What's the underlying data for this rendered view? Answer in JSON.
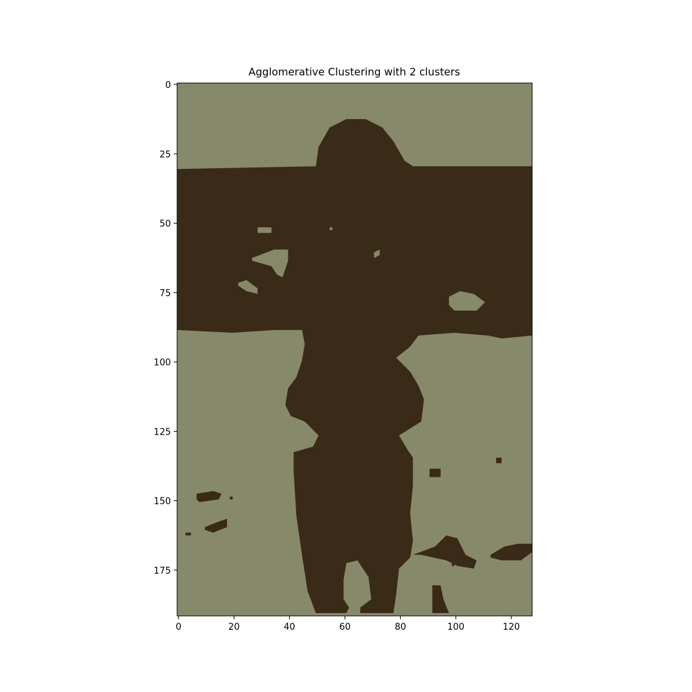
{
  "chart_data": {
    "type": "heatmap",
    "title": "Agglomerative Clustering with 2 clusters",
    "xlabel": "",
    "ylabel": "",
    "xlim": [
      0,
      128
    ],
    "ylim": [
      192,
      0
    ],
    "x_ticks": [
      0,
      20,
      40,
      60,
      80,
      100,
      120
    ],
    "y_ticks": [
      0,
      25,
      50,
      75,
      100,
      125,
      150,
      175
    ],
    "grid": false,
    "legend": "none",
    "colors": {
      "light": "#878a6a",
      "dark": "#3a2a18"
    },
    "clusters": [
      "light",
      "dark"
    ],
    "dark_regions_note_free": true,
    "dark_polygons": [
      [
        [
          0,
          31
        ],
        [
          50,
          30
        ],
        [
          51,
          23
        ],
        [
          55,
          16
        ],
        [
          61,
          13
        ],
        [
          68,
          13
        ],
        [
          74,
          16
        ],
        [
          78,
          21
        ],
        [
          82,
          28
        ],
        [
          85,
          30
        ],
        [
          100,
          30
        ],
        [
          128,
          30
        ],
        [
          128,
          91
        ],
        [
          117,
          92
        ],
        [
          112,
          91
        ],
        [
          100,
          90
        ],
        [
          87,
          91
        ],
        [
          84,
          95
        ],
        [
          79,
          99
        ],
        [
          84,
          104
        ],
        [
          87,
          109
        ],
        [
          89,
          114
        ],
        [
          88,
          122
        ],
        [
          80,
          127
        ],
        [
          83,
          132
        ],
        [
          85,
          135
        ],
        [
          85,
          145
        ],
        [
          84,
          155
        ],
        [
          85,
          165
        ],
        [
          84,
          171
        ],
        [
          80,
          175
        ],
        [
          79,
          184
        ],
        [
          78,
          191
        ],
        [
          66,
          191
        ],
        [
          66,
          189
        ],
        [
          70,
          186
        ],
        [
          69,
          178
        ],
        [
          65,
          172
        ],
        [
          61,
          173
        ],
        [
          60,
          179
        ],
        [
          60,
          186
        ],
        [
          62,
          189
        ],
        [
          61,
          191
        ],
        [
          50,
          191
        ],
        [
          47,
          183
        ],
        [
          45,
          170
        ],
        [
          43,
          156
        ],
        [
          42,
          140
        ],
        [
          42,
          133
        ],
        [
          49,
          131
        ],
        [
          51,
          127
        ],
        [
          46,
          122
        ],
        [
          41,
          120
        ],
        [
          39,
          116
        ],
        [
          40,
          110
        ],
        [
          43,
          106
        ],
        [
          45,
          100
        ],
        [
          46,
          94
        ],
        [
          45,
          89
        ],
        [
          35,
          89
        ],
        [
          20,
          90
        ],
        [
          0,
          89
        ]
      ]
    ],
    "light_holes_in_dark": [
      [
        [
          29,
          52
        ],
        [
          34,
          52
        ],
        [
          34,
          54
        ],
        [
          29,
          54
        ]
      ],
      [
        [
          27,
          63
        ],
        [
          35,
          60
        ],
        [
          40,
          60
        ],
        [
          40,
          64
        ],
        [
          38,
          70
        ],
        [
          36,
          69
        ],
        [
          34,
          66
        ],
        [
          27,
          64
        ]
      ],
      [
        [
          22,
          72
        ],
        [
          25,
          71
        ],
        [
          29,
          74
        ],
        [
          29,
          76
        ],
        [
          25,
          75
        ],
        [
          22,
          73
        ]
      ],
      [
        [
          98,
          77
        ],
        [
          102,
          75
        ],
        [
          107,
          76
        ],
        [
          111,
          79
        ],
        [
          108,
          82
        ],
        [
          100,
          82
        ],
        [
          98,
          80
        ]
      ],
      [
        [
          71,
          61
        ],
        [
          73,
          60
        ],
        [
          73,
          62
        ],
        [
          71,
          63
        ]
      ],
      [
        [
          55,
          52
        ],
        [
          56,
          52
        ],
        [
          56,
          53
        ],
        [
          55,
          53
        ]
      ]
    ],
    "dark_blobs_in_light": [
      [
        [
          7,
          148
        ],
        [
          13,
          147
        ],
        [
          16,
          148
        ],
        [
          15,
          150
        ],
        [
          8,
          151
        ],
        [
          7,
          150
        ]
      ],
      [
        [
          10,
          160
        ],
        [
          15,
          158
        ],
        [
          18,
          157
        ],
        [
          18,
          160
        ],
        [
          13,
          162
        ],
        [
          10,
          161
        ]
      ],
      [
        [
          3,
          162
        ],
        [
          5,
          162
        ],
        [
          5,
          163
        ],
        [
          3,
          163
        ]
      ],
      [
        [
          19,
          149
        ],
        [
          20,
          149
        ],
        [
          20,
          150
        ],
        [
          19,
          150
        ]
      ],
      [
        [
          91,
          139
        ],
        [
          95,
          139
        ],
        [
          95,
          142
        ],
        [
          91,
          142
        ]
      ],
      [
        [
          115,
          135
        ],
        [
          117,
          135
        ],
        [
          117,
          137
        ],
        [
          115,
          137
        ]
      ],
      [
        [
          85,
          170
        ],
        [
          93,
          167
        ],
        [
          97,
          163
        ],
        [
          101,
          164
        ],
        [
          104,
          170
        ],
        [
          108,
          172
        ],
        [
          107,
          175
        ],
        [
          101,
          174
        ],
        [
          97,
          172
        ],
        [
          88,
          170
        ]
      ],
      [
        [
          113,
          170
        ],
        [
          118,
          167
        ],
        [
          123,
          166
        ],
        [
          128,
          166
        ],
        [
          128,
          169
        ],
        [
          124,
          172
        ],
        [
          117,
          172
        ],
        [
          113,
          171
        ]
      ],
      [
        [
          92,
          181
        ],
        [
          95,
          181
        ],
        [
          96,
          186
        ],
        [
          98,
          191
        ],
        [
          92,
          191
        ],
        [
          92,
          186
        ]
      ],
      [
        [
          99,
          173
        ],
        [
          100,
          173
        ],
        [
          100,
          174
        ],
        [
          99,
          174
        ]
      ]
    ]
  }
}
